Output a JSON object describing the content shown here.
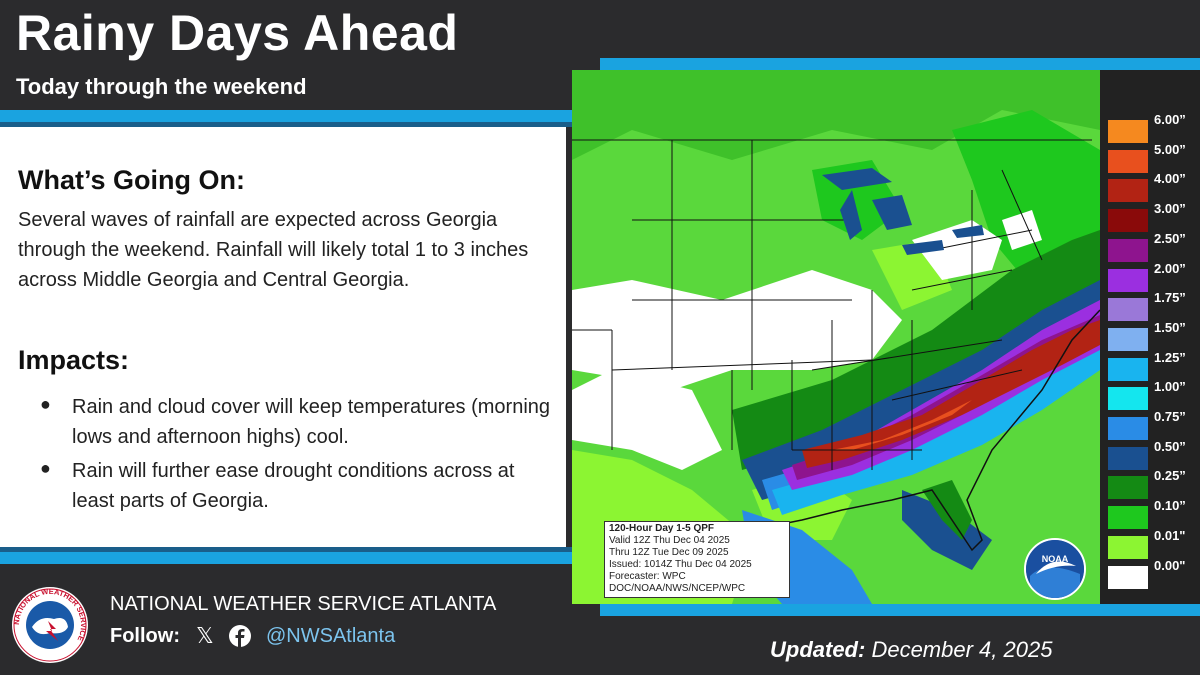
{
  "header": {
    "title": "Rainy Days Ahead",
    "subtitle": "Today through the weekend"
  },
  "content": {
    "section1_heading": "What’s Going On:",
    "section1_body": "Several waves of rainfall are expected across Georgia through the weekend. Rainfall will likely total 1 to 3 inches across Middle Georgia and Central Georgia.",
    "section2_heading": "Impacts:",
    "bullets": [
      "Rain and cloud cover will keep temperatures (morning lows and afternoon highs) cool.",
      "Rain will further ease drought conditions across at least parts of Georgia."
    ]
  },
  "map": {
    "info_lines": [
      "120-Hour Day 1-5 QPF",
      "Valid 12Z Thu Dec 04 2025",
      "Thru 12Z Tue Dec 09 2025",
      "Issued: 1014Z Thu Dec 04 2025",
      "Forecaster: WPC",
      "DOC/NOAA/NWS/NCEP/WPC"
    ],
    "noaa_label": "NOAA",
    "legend": [
      {
        "label": "6.00”",
        "color": "#f5891f"
      },
      {
        "label": "5.00”",
        "color": "#e8501e"
      },
      {
        "label": "4.00”",
        "color": "#b22314"
      },
      {
        "label": "3.00”",
        "color": "#8a0a0a"
      },
      {
        "label": "2.50”",
        "color": "#8e148e"
      },
      {
        "label": "2.00”",
        "color": "#9b2fe0"
      },
      {
        "label": "1.75”",
        "color": "#9a78d8"
      },
      {
        "label": "1.50”",
        "color": "#7fb0f0"
      },
      {
        "label": "1.25”",
        "color": "#19b4ef"
      },
      {
        "label": "1.00”",
        "color": "#14e6ee"
      },
      {
        "label": "0.75”",
        "color": "#2a8ce6"
      },
      {
        "label": "0.50”",
        "color": "#1a5090"
      },
      {
        "label": "0.25”",
        "color": "#148a14"
      },
      {
        "label": "0.10”",
        "color": "#1ec81e"
      },
      {
        "label": "0.01\"",
        "color": "#8cf532"
      },
      {
        "label": "0.00\"",
        "color": "#ffffff"
      }
    ]
  },
  "footer": {
    "org_name": "NATIONAL WEATHER SERVICE ATLANTA",
    "follow_label": "Follow:",
    "x_icon_glyph": "𝕏",
    "handle": "@NWSAtlanta",
    "updated_label": "Updated:",
    "updated_date": "December 4, 2025",
    "logo_text": "NATIONAL WEATHER SERVICE"
  }
}
